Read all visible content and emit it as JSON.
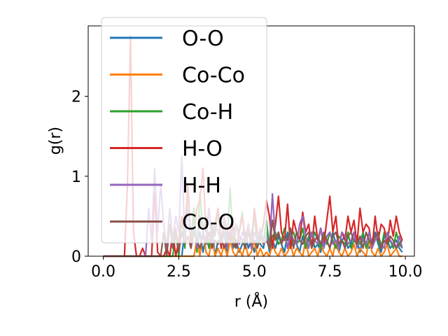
{
  "chart_data": {
    "type": "line",
    "xlabel": "r (Å)",
    "ylabel": "g(r)",
    "xlim": [
      -0.5,
      10.3
    ],
    "ylim": [
      0,
      2.88
    ],
    "xticks": [
      0.0,
      2.5,
      5.0,
      7.5,
      10.0
    ],
    "xtick_labels": [
      "0.0",
      "2.5",
      "5.0",
      "7.5",
      "10.0"
    ],
    "yticks": [
      0,
      1,
      2
    ],
    "ytick_labels": [
      "0",
      "1",
      "2"
    ],
    "grid": false,
    "legend_position": "upper left",
    "series": [
      {
        "name": "O-O",
        "color": "#1f77b4",
        "x": [
          0,
          2.6,
          2.7,
          2.8,
          2.9,
          3.0,
          3.1,
          3.2,
          3.3,
          3.4,
          3.5,
          3.6,
          3.7,
          3.8,
          3.9,
          4.0,
          4.1,
          4.2,
          4.3,
          4.4,
          4.5,
          4.6,
          4.7,
          4.8,
          4.9,
          5.0,
          5.1,
          5.2,
          5.3,
          5.4,
          5.5,
          5.6,
          5.7,
          5.8,
          5.9,
          6.0,
          6.1,
          6.2,
          6.3,
          6.4,
          6.5,
          6.6,
          6.7,
          6.8,
          6.9,
          7.0,
          7.1,
          7.2,
          7.3,
          7.4,
          7.5,
          7.6,
          7.7,
          7.8,
          7.9,
          8.0,
          8.1,
          8.2,
          8.3,
          8.4,
          8.5,
          8.6,
          8.7,
          8.8,
          8.9,
          9.0,
          9.1,
          9.2,
          9.3,
          9.4,
          9.5,
          9.6,
          9.7,
          9.8,
          9.9
        ],
        "y": [
          0,
          0,
          0.35,
          0.6,
          0.2,
          0.45,
          0.1,
          0.3,
          0.05,
          0.25,
          0.1,
          0.35,
          0.0,
          0.2,
          0.15,
          0.3,
          0.05,
          0.25,
          0.1,
          0.2,
          0.05,
          0.15,
          0.3,
          0.1,
          0.2,
          0.05,
          0.25,
          0.15,
          0.1,
          0.3,
          0.05,
          0.2,
          0.1,
          0.25,
          0.15,
          0.05,
          0.3,
          0.1,
          0.2,
          0.15,
          0.05,
          0.25,
          0.1,
          0.2,
          0.3,
          0.1,
          0.15,
          0.05,
          0.25,
          0.2,
          0.1,
          0.3,
          0.15,
          0.05,
          0.2,
          0.25,
          0.1,
          0.15,
          0.3,
          0.2,
          0.05,
          0.25,
          0.15,
          0.1,
          0.2,
          0.3,
          0.15,
          0.05,
          0.25,
          0.2,
          0.1,
          0.15,
          0.2,
          0.1,
          0.05
        ]
      },
      {
        "name": "Co-Co",
        "color": "#ff7f0e",
        "x": [
          0,
          3.0,
          3.1,
          3.2,
          3.3,
          3.4,
          3.5,
          3.6,
          3.7,
          3.8,
          3.9,
          4.0,
          4.1,
          4.2,
          4.3,
          4.4,
          4.5,
          4.6,
          4.7,
          4.8,
          4.9,
          5.0,
          5.1,
          5.2,
          5.3,
          5.4,
          5.5,
          5.6,
          5.7,
          5.8,
          5.9,
          6.0,
          6.1,
          6.2,
          6.3,
          6.4,
          6.5,
          6.6,
          6.7,
          6.8,
          6.9,
          7.0,
          7.1,
          7.2,
          7.3,
          7.4,
          7.5,
          7.6,
          7.7,
          7.8,
          7.9,
          8.0,
          8.1,
          8.2,
          8.3,
          8.4,
          8.5,
          8.6,
          8.7,
          8.8,
          8.9,
          9.0,
          9.1,
          9.2,
          9.3,
          9.4,
          9.5,
          9.6,
          9.7,
          9.8,
          9.9
        ],
        "y": [
          0,
          0,
          0.2,
          0.0,
          0.35,
          0.05,
          0.0,
          0.25,
          0.0,
          0.1,
          0.0,
          0.15,
          0.0,
          0.2,
          0.05,
          0.0,
          0.1,
          0.0,
          0.15,
          0.0,
          0.05,
          0.2,
          0.0,
          0.1,
          0.0,
          0.05,
          0.0,
          0.15,
          0.05,
          0.0,
          0.1,
          0.0,
          0.05,
          0.15,
          0.0,
          0.1,
          0.05,
          0.0,
          0.2,
          0.0,
          0.05,
          0.1,
          0.0,
          0.15,
          0.05,
          0.0,
          0.1,
          0.0,
          0.2,
          0.05,
          0.0,
          0.1,
          0.0,
          0.05,
          0.15,
          0.0,
          0.1,
          0.05,
          0.0,
          0.2,
          0.05,
          0.0,
          0.1,
          0.0,
          0.05,
          0.15,
          0.0,
          0.05,
          0.1,
          0.0,
          0.0
        ]
      },
      {
        "name": "Co-H",
        "color": "#2ca02c",
        "x": [
          0,
          2.3,
          2.4,
          2.5,
          2.6,
          2.7,
          2.8,
          2.9,
          3.0,
          3.1,
          3.2,
          3.3,
          3.4,
          3.5,
          3.6,
          3.7,
          3.8,
          3.9,
          4.0,
          4.1,
          4.2,
          4.3,
          4.4,
          4.5,
          4.6,
          4.7,
          4.8,
          4.9,
          5.0,
          5.1,
          5.2,
          5.3,
          5.4,
          5.5,
          5.6,
          5.7,
          5.8,
          5.9,
          6.0,
          6.1,
          6.2,
          6.3,
          6.4,
          6.5,
          6.6,
          6.7,
          6.8,
          6.9,
          7.0,
          7.1,
          7.2,
          7.3,
          7.4,
          7.5,
          7.6,
          7.7,
          7.8,
          7.9,
          8.0,
          8.1,
          8.2,
          8.3,
          8.4,
          8.5,
          8.6,
          8.7,
          8.8,
          8.9,
          9.0,
          9.1,
          9.2,
          9.3,
          9.4,
          9.5,
          9.6,
          9.7,
          9.8,
          9.9
        ],
        "y": [
          0,
          0,
          0.3,
          0.0,
          0.5,
          0.1,
          0.9,
          0.2,
          0.6,
          0.05,
          0.8,
          0.3,
          0.5,
          0.1,
          0.4,
          0.25,
          0.6,
          0.1,
          0.45,
          0.2,
          0.85,
          0.15,
          0.4,
          0.3,
          0.55,
          0.1,
          0.35,
          0.25,
          0.5,
          0.15,
          0.3,
          0.2,
          0.45,
          0.1,
          0.25,
          0.3,
          0.15,
          0.2,
          0.35,
          0.1,
          0.25,
          0.3,
          0.15,
          0.2,
          0.35,
          0.1,
          0.25,
          0.15,
          0.3,
          0.2,
          0.1,
          0.25,
          0.15,
          0.3,
          0.2,
          0.1,
          0.25,
          0.2,
          0.15,
          0.3,
          0.1,
          0.2,
          0.25,
          0.15,
          0.3,
          0.1,
          0.2,
          0.15,
          0.25,
          0.2,
          0.1,
          0.3,
          0.15,
          0.2,
          0.1,
          0.3,
          0.15,
          0.1
        ]
      },
      {
        "name": "H-O",
        "color": "#d62728",
        "x": [
          0,
          0.7,
          0.8,
          0.9,
          1.0,
          1.1,
          1.2,
          1.3,
          1.4,
          1.5,
          1.6,
          1.7,
          1.8,
          1.9,
          2.0,
          2.1,
          2.2,
          2.3,
          2.4,
          2.5,
          2.6,
          2.7,
          2.8,
          2.9,
          3.0,
          3.1,
          3.2,
          3.3,
          3.4,
          3.5,
          3.6,
          3.7,
          3.8,
          3.9,
          4.0,
          4.1,
          4.2,
          4.3,
          4.4,
          4.5,
          4.6,
          4.7,
          4.8,
          4.9,
          5.0,
          5.1,
          5.2,
          5.3,
          5.4,
          5.5,
          5.6,
          5.7,
          5.8,
          5.9,
          6.0,
          6.1,
          6.2,
          6.3,
          6.4,
          6.5,
          6.6,
          6.7,
          6.8,
          6.9,
          7.0,
          7.1,
          7.2,
          7.3,
          7.4,
          7.5,
          7.6,
          7.7,
          7.8,
          7.9,
          8.0,
          8.1,
          8.2,
          8.3,
          8.4,
          8.5,
          8.6,
          8.7,
          8.8,
          8.9,
          9.0,
          9.1,
          9.2,
          9.3,
          9.4,
          9.5,
          9.6,
          9.7,
          9.8,
          9.9
        ],
        "y": [
          0,
          0,
          0.9,
          2.75,
          0.3,
          0.0,
          0.0,
          0.1,
          0.0,
          0.0,
          0.0,
          0.8,
          0.05,
          0.0,
          0.0,
          0.1,
          0.0,
          0.3,
          0.0,
          0.2,
          0.5,
          0.3,
          0.9,
          0.1,
          0.3,
          0.6,
          0.7,
          1.1,
          0.3,
          0.6,
          0.2,
          0.4,
          0.6,
          0.1,
          0.5,
          0.3,
          0.2,
          0.4,
          0.1,
          0.3,
          0.5,
          0.2,
          0.4,
          0.1,
          0.6,
          0.3,
          0.2,
          0.4,
          0.7,
          0.5,
          0.1,
          0.4,
          0.75,
          0.3,
          0.2,
          0.65,
          0.1,
          0.45,
          0.3,
          0.2,
          0.55,
          0.3,
          0.4,
          0.1,
          0.5,
          0.2,
          0.35,
          0.15,
          0.45,
          0.75,
          0.3,
          0.5,
          0.1,
          0.3,
          0.2,
          0.5,
          0.3,
          0.45,
          0.15,
          0.6,
          0.3,
          0.4,
          0.35,
          0.1,
          0.5,
          0.2,
          0.4,
          0.35,
          0.15,
          0.45,
          0.25,
          0.5,
          0.3,
          0.2
        ]
      },
      {
        "name": "H-H",
        "color": "#9467bd",
        "x": [
          0,
          1.4,
          1.5,
          1.6,
          1.7,
          1.8,
          1.9,
          2.0,
          2.1,
          2.2,
          2.3,
          2.4,
          2.5,
          2.6,
          2.7,
          2.8,
          2.9,
          3.0,
          3.1,
          3.2,
          3.3,
          3.4,
          3.5,
          3.6,
          3.7,
          3.8,
          3.9,
          4.0,
          4.1,
          4.2,
          4.3,
          4.4,
          4.5,
          4.6,
          4.7,
          4.8,
          4.9,
          5.0,
          5.1,
          5.2,
          5.3,
          5.4,
          5.5,
          5.6,
          5.7,
          5.8,
          5.9,
          6.0,
          6.1,
          6.2,
          6.3,
          6.4,
          6.5,
          6.6,
          6.7,
          6.8,
          6.9,
          7.0,
          7.1,
          7.2,
          7.3,
          7.4,
          7.5,
          7.6,
          7.7,
          7.8,
          7.9,
          8.0,
          8.1,
          8.2,
          8.3,
          8.4,
          8.5,
          8.6,
          8.7,
          8.8,
          8.9,
          9.0,
          9.1,
          9.2,
          9.3,
          9.4,
          9.5,
          9.6,
          9.7,
          9.8,
          9.9
        ],
        "y": [
          0,
          0,
          0.6,
          0.2,
          1.1,
          0.3,
          0.9,
          0.4,
          0.1,
          0.6,
          0.2,
          0.5,
          0.3,
          1.25,
          0.2,
          0.6,
          0.3,
          0.4,
          0.1,
          0.5,
          0.3,
          0.2,
          0.6,
          0.1,
          0.4,
          0.3,
          0.2,
          0.5,
          0.1,
          0.35,
          0.25,
          0.4,
          0.15,
          0.3,
          0.2,
          0.4,
          0.1,
          0.3,
          0.2,
          0.35,
          0.15,
          0.25,
          0.1,
          0.78,
          0.2,
          0.3,
          0.15,
          0.25,
          0.1,
          0.3,
          0.2,
          0.15,
          0.4,
          0.5,
          0.25,
          0.1,
          0.3,
          0.2,
          0.15,
          0.35,
          0.1,
          0.25,
          0.3,
          0.15,
          0.2,
          0.1,
          0.3,
          0.25,
          0.15,
          0.2,
          0.3,
          0.1,
          0.25,
          0.2,
          0.15,
          0.3,
          0.1,
          0.2,
          0.25,
          0.15,
          0.1,
          0.3,
          0.2,
          0.15,
          0.1,
          0.25,
          0.1
        ]
      },
      {
        "name": "Co-O",
        "color": "#8c564b",
        "x": [
          0,
          1.9,
          2.0,
          2.1,
          2.2,
          2.3,
          2.4,
          2.5,
          2.6,
          2.7,
          2.8,
          2.9,
          3.0,
          3.1,
          3.2,
          3.3,
          3.4,
          3.5,
          3.6,
          3.7,
          3.8,
          3.9,
          4.0,
          4.1,
          4.2,
          4.3,
          4.4,
          4.5,
          4.6,
          4.7,
          4.8,
          4.9,
          5.0,
          5.1,
          5.2,
          5.3,
          5.4,
          5.5,
          5.6,
          5.7,
          5.8,
          5.9,
          6.0,
          6.1,
          6.2,
          6.3,
          6.4,
          6.5,
          6.6,
          6.7,
          6.8,
          6.9,
          7.0,
          7.1,
          7.2,
          7.3,
          7.4,
          7.5,
          7.6,
          7.7,
          7.8,
          7.9,
          8.0,
          8.1,
          8.2,
          8.3,
          8.4,
          8.5,
          8.6,
          8.7,
          8.8,
          8.9,
          9.0,
          9.1,
          9.2,
          9.3,
          9.4,
          9.5,
          9.6,
          9.7,
          9.8,
          9.9
        ],
        "y": [
          0,
          0,
          0.3,
          0.0,
          0.4,
          0.1,
          0.35,
          0.05,
          0.3,
          0.15,
          0.25,
          0.1,
          0.3,
          0.2,
          0.1,
          0.25,
          0.15,
          0.3,
          0.1,
          0.2,
          0.15,
          0.25,
          0.1,
          0.2,
          0.3,
          0.15,
          0.1,
          0.25,
          0.2,
          0.1,
          0.3,
          0.15,
          0.2,
          0.1,
          0.25,
          0.15,
          0.2,
          0.1,
          0.45,
          0.2,
          0.3,
          0.15,
          0.25,
          0.2,
          0.35,
          0.1,
          0.3,
          0.2,
          0.15,
          0.25,
          0.3,
          0.1,
          0.2,
          0.25,
          0.15,
          0.3,
          0.2,
          0.1,
          0.25,
          0.3,
          0.15,
          0.2,
          0.1,
          0.25,
          0.3,
          0.2,
          0.15,
          0.25,
          0.1,
          0.3,
          0.2,
          0.15,
          0.25,
          0.3,
          0.1,
          0.2,
          0.15,
          0.25,
          0.2,
          0.1,
          0.15,
          0.2
        ]
      }
    ]
  }
}
